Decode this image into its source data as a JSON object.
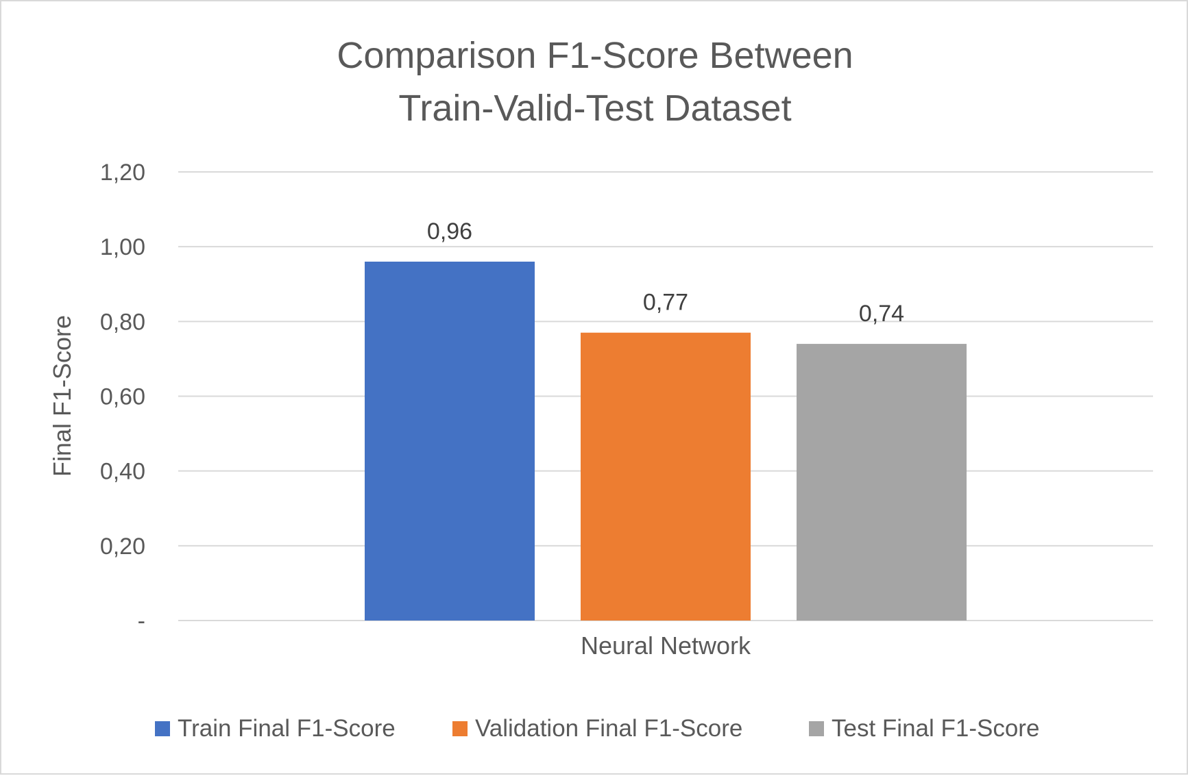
{
  "chart_data": {
    "type": "bar",
    "title_lines": [
      "Comparison F1-Score Between",
      "Train-Valid-Test Dataset"
    ],
    "xlabel": "",
    "ylabel": "Final F1-Score",
    "categories": [
      "Neural Network"
    ],
    "series": [
      {
        "name": "Train Final F1-Score",
        "values": [
          0.96
        ],
        "label": "0,96",
        "color": "#4472c4"
      },
      {
        "name": "Validation Final F1-Score",
        "values": [
          0.77
        ],
        "label": "0,77",
        "color": "#ed7d31"
      },
      {
        "name": "Test Final F1-Score",
        "values": [
          0.74
        ],
        "label": "0,74",
        "color": "#a5a5a5"
      }
    ],
    "ylim": [
      0,
      1.2
    ],
    "yticks": [
      {
        "value": 0,
        "label": "-"
      },
      {
        "value": 0.2,
        "label": "0,20"
      },
      {
        "value": 0.4,
        "label": "0,40"
      },
      {
        "value": 0.6,
        "label": "0,60"
      },
      {
        "value": 0.8,
        "label": "0,80"
      },
      {
        "value": 1.0,
        "label": "1,00"
      },
      {
        "value": 1.2,
        "label": "1,20"
      }
    ],
    "grid": true,
    "legend_position": "bottom"
  }
}
